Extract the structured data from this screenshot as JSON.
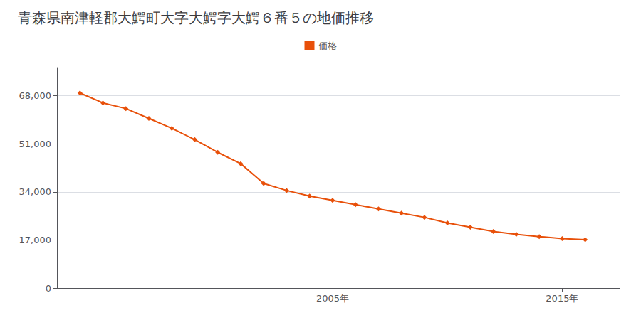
{
  "chart_data": {
    "type": "line",
    "title": "青森県南津軽郡大鰐町大字大鰐字大鰐６番５の地価推移",
    "x": [
      1994,
      1995,
      1996,
      1997,
      1998,
      1999,
      2000,
      2001,
      2002,
      2003,
      2004,
      2005,
      2006,
      2007,
      2008,
      2009,
      2010,
      2011,
      2012,
      2013,
      2014,
      2015,
      2016
    ],
    "series": [
      {
        "name": "価格",
        "color": "#e8500a",
        "marker": "diamond",
        "values": [
          69000,
          65500,
          63500,
          60000,
          56500,
          52500,
          48000,
          44000,
          37000,
          34500,
          32500,
          31000,
          29500,
          28000,
          26500,
          25000,
          23000,
          21500,
          20000,
          19000,
          18200,
          17500,
          17100
        ]
      }
    ],
    "xlim": [
      1993.0,
      2017.5
    ],
    "xticks": [
      {
        "value": 2005,
        "label": "2005年"
      },
      {
        "value": 2015,
        "label": "2015年"
      }
    ],
    "ylim": [
      0,
      78000
    ],
    "yticks": [
      0,
      {
        "value": 17000,
        "label": "17,000"
      },
      {
        "value": 34000,
        "label": "34,000"
      },
      {
        "value": 51000,
        "label": "51,000"
      },
      {
        "value": 68000,
        "label": "68,000"
      }
    ],
    "grid": true,
    "legend": "top"
  }
}
